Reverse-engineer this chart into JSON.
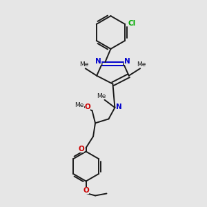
{
  "bg_color": "#e6e6e6",
  "bond_color": "#1a1a1a",
  "N_color": "#0000cc",
  "O_color": "#cc0000",
  "Cl_color": "#00aa00",
  "lw": 1.4,
  "figsize": [
    3.0,
    3.0
  ],
  "dpi": 100,
  "xlim": [
    0,
    10
  ],
  "ylim": [
    0,
    10
  ]
}
